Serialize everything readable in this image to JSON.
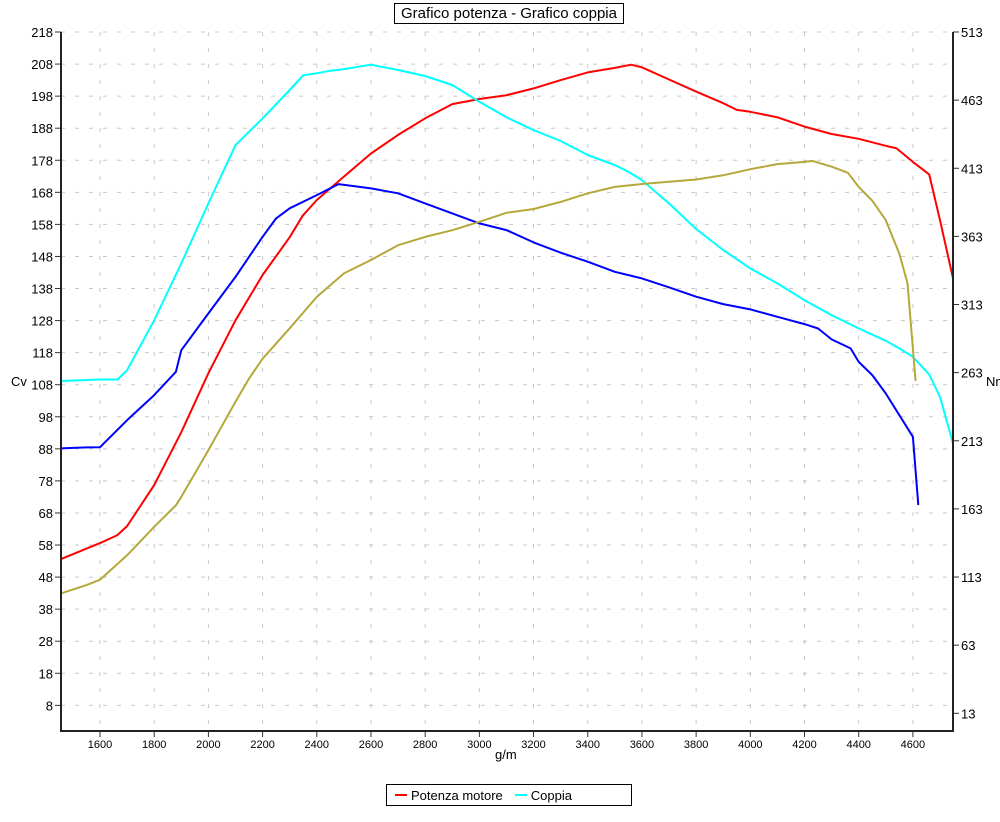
{
  "chart_data": {
    "type": "line",
    "title": "Grafico potenza - Grafico coppia",
    "xlabel": "g/m",
    "ylabel_left": "Cv",
    "ylabel_right": "Nm",
    "xlim": [
      1456,
      4748
    ],
    "ylim_left": [
      0,
      218
    ],
    "ylim_right": [
      0,
      513
    ],
    "x_ticks": [
      1600,
      1800,
      2000,
      2200,
      2400,
      2600,
      2800,
      3000,
      3200,
      3400,
      3600,
      3800,
      4000,
      4200,
      4400,
      4600
    ],
    "y_ticks_left": [
      8,
      18,
      28,
      38,
      48,
      58,
      68,
      78,
      88,
      98,
      108,
      118,
      128,
      138,
      148,
      158,
      168,
      178,
      188,
      198,
      208,
      218
    ],
    "y_ticks_right": [
      13,
      63,
      113,
      163,
      213,
      263,
      313,
      363,
      413,
      463,
      513
    ],
    "grid": true,
    "legend_position": "bottom-center",
    "series": [
      {
        "name": "Potenza motore",
        "axis": "left",
        "color": "#ff0000",
        "points": [
          [
            1456,
            53.6
          ],
          [
            1600,
            58.6
          ],
          [
            1664,
            61.1
          ],
          [
            1700,
            63.9
          ],
          [
            1800,
            76.7
          ],
          [
            1900,
            93.2
          ],
          [
            2000,
            111.6
          ],
          [
            2100,
            128.1
          ],
          [
            2200,
            142.2
          ],
          [
            2300,
            154
          ],
          [
            2348,
            160.7
          ],
          [
            2400,
            165.6
          ],
          [
            2500,
            172.9
          ],
          [
            2600,
            180.1
          ],
          [
            2700,
            185.9
          ],
          [
            2800,
            191.1
          ],
          [
            2900,
            195.5
          ],
          [
            3000,
            197.1
          ],
          [
            3100,
            198.3
          ],
          [
            3200,
            200.4
          ],
          [
            3300,
            203
          ],
          [
            3400,
            205.4
          ],
          [
            3500,
            206.8
          ],
          [
            3560,
            207.8
          ],
          [
            3600,
            207
          ],
          [
            3700,
            203.2
          ],
          [
            3800,
            199.4
          ],
          [
            3900,
            195.8
          ],
          [
            3950,
            193.7
          ],
          [
            4000,
            193.1
          ],
          [
            4100,
            191.4
          ],
          [
            4200,
            188.5
          ],
          [
            4300,
            186.2
          ],
          [
            4400,
            184.7
          ],
          [
            4500,
            182.5
          ],
          [
            4540,
            181.7
          ],
          [
            4600,
            177.5
          ],
          [
            4660,
            173.6
          ],
          [
            4700,
            159.3
          ],
          [
            4748,
            141.2
          ]
        ]
      },
      {
        "name": "Coppia",
        "axis": "right",
        "color": "#00ffff",
        "points": [
          [
            1456,
            256.9
          ],
          [
            1600,
            258
          ],
          [
            1665,
            258
          ],
          [
            1700,
            264.8
          ],
          [
            1800,
            301.5
          ],
          [
            1900,
            343.2
          ],
          [
            2000,
            387.2
          ],
          [
            2100,
            430
          ],
          [
            2200,
            449.6
          ],
          [
            2300,
            470.4
          ],
          [
            2350,
            481.2
          ],
          [
            2400,
            482.7
          ],
          [
            2450,
            484.6
          ],
          [
            2500,
            485.8
          ],
          [
            2600,
            489
          ],
          [
            2700,
            485.1
          ],
          [
            2800,
            480.7
          ],
          [
            2900,
            474.1
          ],
          [
            3000,
            461.8
          ],
          [
            3100,
            450.4
          ],
          [
            3200,
            441
          ],
          [
            3300,
            433
          ],
          [
            3400,
            422.7
          ],
          [
            3500,
            415.4
          ],
          [
            3550,
            410.4
          ],
          [
            3600,
            404.3
          ],
          [
            3700,
            387.2
          ],
          [
            3800,
            368.4
          ],
          [
            3900,
            353
          ],
          [
            4000,
            339.5
          ],
          [
            4100,
            328.5
          ],
          [
            4200,
            316.2
          ],
          [
            4300,
            305.2
          ],
          [
            4400,
            295.5
          ],
          [
            4500,
            286.4
          ],
          [
            4550,
            280.8
          ],
          [
            4600,
            274.6
          ],
          [
            4660,
            261.7
          ],
          [
            4700,
            245.2
          ],
          [
            4748,
            211
          ]
        ]
      },
      {
        "axis": "right",
        "color": "#0000ff",
        "points": [
          [
            1456,
            207.4
          ],
          [
            1550,
            208.1
          ],
          [
            1600,
            208.3
          ],
          [
            1700,
            228.1
          ],
          [
            1800,
            246.5
          ],
          [
            1880,
            263.6
          ],
          [
            1900,
            279.5
          ],
          [
            2000,
            306.5
          ],
          [
            2100,
            333.3
          ],
          [
            2200,
            362.7
          ],
          [
            2250,
            376.2
          ],
          [
            2300,
            383.6
          ],
          [
            2400,
            393.3
          ],
          [
            2480,
            401.4
          ],
          [
            2600,
            398.2
          ],
          [
            2700,
            394.6
          ],
          [
            2800,
            387.2
          ],
          [
            2900,
            379.9
          ],
          [
            3000,
            372.5
          ],
          [
            3100,
            367.6
          ],
          [
            3200,
            358.6
          ],
          [
            3300,
            351
          ],
          [
            3400,
            344.4
          ],
          [
            3500,
            337
          ],
          [
            3600,
            332.2
          ],
          [
            3700,
            325.6
          ],
          [
            3800,
            318.7
          ],
          [
            3900,
            313.3
          ],
          [
            4000,
            309.4
          ],
          [
            4100,
            304
          ],
          [
            4200,
            298.6
          ],
          [
            4250,
            295.4
          ],
          [
            4300,
            287.4
          ],
          [
            4370,
            280.8
          ],
          [
            4400,
            270.9
          ],
          [
            4450,
            261.2
          ],
          [
            4500,
            247.7
          ],
          [
            4600,
            215.9
          ],
          [
            4620,
            165.8
          ]
        ]
      },
      {
        "axis": "left",
        "color": "#b5a83a",
        "points": [
          [
            1456,
            42.9
          ],
          [
            1550,
            45.5
          ],
          [
            1600,
            47.2
          ],
          [
            1700,
            54.8
          ],
          [
            1800,
            63.7
          ],
          [
            1880,
            70.4
          ],
          [
            1900,
            73
          ],
          [
            2000,
            87.6
          ],
          [
            2100,
            102.7
          ],
          [
            2150,
            109.9
          ],
          [
            2200,
            116.1
          ],
          [
            2300,
            125.6
          ],
          [
            2400,
            135.4
          ],
          [
            2500,
            142.7
          ],
          [
            2600,
            146.9
          ],
          [
            2700,
            151.5
          ],
          [
            2800,
            154.1
          ],
          [
            2900,
            156.2
          ],
          [
            3000,
            158.8
          ],
          [
            3100,
            161.6
          ],
          [
            3200,
            162.8
          ],
          [
            3300,
            165
          ],
          [
            3400,
            167.7
          ],
          [
            3500,
            169.7
          ],
          [
            3600,
            170.6
          ],
          [
            3700,
            171.3
          ],
          [
            3800,
            172
          ],
          [
            3900,
            173.3
          ],
          [
            4000,
            175.2
          ],
          [
            4100,
            176.8
          ],
          [
            4200,
            177.5
          ],
          [
            4230,
            177.8
          ],
          [
            4300,
            176
          ],
          [
            4360,
            174.1
          ],
          [
            4400,
            169.7
          ],
          [
            4450,
            165.4
          ],
          [
            4500,
            159.3
          ],
          [
            4550,
            148.9
          ],
          [
            4580,
            139.6
          ],
          [
            4610,
            109.2
          ]
        ]
      }
    ]
  },
  "legend": [
    {
      "label": "Potenza motore",
      "color": "#ff0000"
    },
    {
      "label": "Coppia",
      "color": "#00ffff"
    }
  ]
}
